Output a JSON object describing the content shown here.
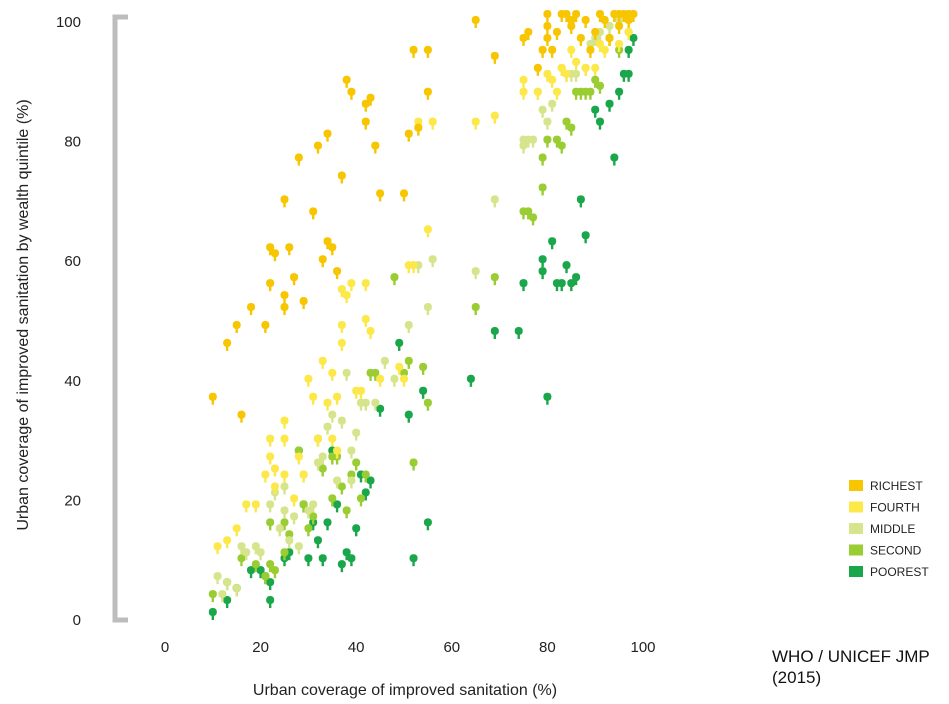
{
  "source_note": "WHO / UNICEF JMP (2015)",
  "chart_data": {
    "type": "scatter",
    "xlabel": "Urban coverage of improved sanitation (%)",
    "ylabel": "Urban coverage of improved sanitation by wealth quintile (%)",
    "xlim": [
      0,
      100
    ],
    "ylim": [
      0,
      100
    ],
    "x_ticks": [
      0,
      20,
      40,
      60,
      80,
      100
    ],
    "y_ticks": [
      0,
      20,
      40,
      60,
      80,
      100
    ],
    "legend_position": "right",
    "series": [
      {
        "name": "RICHEST",
        "color": "#f7c600",
        "points": [
          [
            10,
            37
          ],
          [
            13,
            46
          ],
          [
            15,
            49
          ],
          [
            16,
            34
          ],
          [
            18,
            52
          ],
          [
            21,
            49
          ],
          [
            22,
            62
          ],
          [
            22,
            56
          ],
          [
            23,
            61
          ],
          [
            25,
            70
          ],
          [
            25,
            54
          ],
          [
            25,
            52
          ],
          [
            26,
            62
          ],
          [
            27,
            57
          ],
          [
            28,
            77
          ],
          [
            29,
            53
          ],
          [
            31,
            68
          ],
          [
            32,
            79
          ],
          [
            33,
            60
          ],
          [
            34,
            81
          ],
          [
            34,
            63
          ],
          [
            35,
            62
          ],
          [
            36,
            58
          ],
          [
            37,
            74
          ],
          [
            38,
            90
          ],
          [
            39,
            88
          ],
          [
            42,
            86
          ],
          [
            42,
            83
          ],
          [
            43,
            87
          ],
          [
            44,
            79
          ],
          [
            45,
            71
          ],
          [
            50,
            71
          ],
          [
            51,
            81
          ],
          [
            52,
            95
          ],
          [
            53,
            82
          ],
          [
            55,
            95
          ],
          [
            55,
            88
          ],
          [
            65,
            100
          ],
          [
            69,
            94
          ],
          [
            75,
            97
          ],
          [
            76,
            98
          ],
          [
            78,
            92
          ],
          [
            79,
            95
          ],
          [
            80,
            97
          ],
          [
            80,
            99
          ],
          [
            80,
            101
          ],
          [
            81,
            95
          ],
          [
            82,
            98
          ],
          [
            83,
            101
          ],
          [
            84,
            101
          ],
          [
            85,
            100
          ],
          [
            85,
            99
          ],
          [
            86,
            101
          ],
          [
            87,
            97
          ],
          [
            88,
            100
          ],
          [
            89,
            95
          ],
          [
            90,
            98
          ],
          [
            91,
            101
          ],
          [
            92,
            100
          ],
          [
            93,
            97
          ],
          [
            94,
            101
          ],
          [
            95,
            99
          ],
          [
            95,
            101
          ],
          [
            96,
            101
          ],
          [
            97,
            100
          ],
          [
            97,
            101
          ],
          [
            98,
            101
          ]
        ]
      },
      {
        "name": "FOURTH",
        "color": "#fde84a",
        "points": [
          [
            11,
            12
          ],
          [
            13,
            13
          ],
          [
            15,
            15
          ],
          [
            17,
            19
          ],
          [
            19,
            19
          ],
          [
            21,
            24
          ],
          [
            22,
            30
          ],
          [
            22,
            27
          ],
          [
            23,
            25
          ],
          [
            23,
            22
          ],
          [
            25,
            33
          ],
          [
            25,
            30
          ],
          [
            25,
            24
          ],
          [
            27,
            20
          ],
          [
            28,
            27
          ],
          [
            29,
            24
          ],
          [
            30,
            40
          ],
          [
            31,
            37
          ],
          [
            32,
            30
          ],
          [
            33,
            43
          ],
          [
            34,
            36
          ],
          [
            35,
            30
          ],
          [
            35,
            41
          ],
          [
            36,
            37
          ],
          [
            36,
            28
          ],
          [
            37,
            46
          ],
          [
            37,
            49
          ],
          [
            37,
            55
          ],
          [
            38,
            54
          ],
          [
            39,
            56
          ],
          [
            40,
            38
          ],
          [
            41,
            38
          ],
          [
            42,
            56
          ],
          [
            42,
            50
          ],
          [
            43,
            48
          ],
          [
            45,
            40
          ],
          [
            49,
            42
          ],
          [
            50,
            40
          ],
          [
            51,
            59
          ],
          [
            52,
            59
          ],
          [
            53,
            83
          ],
          [
            55,
            65
          ],
          [
            56,
            83
          ],
          [
            65,
            83
          ],
          [
            69,
            84
          ],
          [
            75,
            88
          ],
          [
            75,
            90
          ],
          [
            78,
            88
          ],
          [
            80,
            91
          ],
          [
            81,
            90
          ],
          [
            82,
            88
          ],
          [
            83,
            92
          ],
          [
            84,
            91
          ],
          [
            85,
            95
          ],
          [
            86,
            93
          ],
          [
            88,
            92
          ],
          [
            90,
            92
          ],
          [
            91,
            96
          ],
          [
            92,
            95
          ],
          [
            95,
            96
          ],
          [
            97,
            98
          ]
        ]
      },
      {
        "name": "MIDDLE",
        "color": "#d6e58c",
        "points": [
          [
            11,
            7
          ],
          [
            12,
            4
          ],
          [
            13,
            6
          ],
          [
            15,
            5
          ],
          [
            16,
            12
          ],
          [
            17,
            11
          ],
          [
            19,
            12
          ],
          [
            20,
            11
          ],
          [
            22,
            19
          ],
          [
            23,
            21
          ],
          [
            24,
            15
          ],
          [
            25,
            22
          ],
          [
            25,
            18
          ],
          [
            26,
            13
          ],
          [
            27,
            17
          ],
          [
            28,
            12
          ],
          [
            29,
            24
          ],
          [
            30,
            18
          ],
          [
            31,
            19
          ],
          [
            32,
            26
          ],
          [
            33,
            27
          ],
          [
            34,
            32
          ],
          [
            35,
            34
          ],
          [
            36,
            23
          ],
          [
            37,
            33
          ],
          [
            38,
            41
          ],
          [
            39,
            23
          ],
          [
            39,
            28
          ],
          [
            40,
            31
          ],
          [
            41,
            36
          ],
          [
            42,
            36
          ],
          [
            44,
            36
          ],
          [
            46,
            43
          ],
          [
            48,
            40
          ],
          [
            51,
            49
          ],
          [
            53,
            59
          ],
          [
            55,
            52
          ],
          [
            56,
            60
          ],
          [
            65,
            58
          ],
          [
            69,
            70
          ],
          [
            75,
            79
          ],
          [
            75,
            80
          ],
          [
            76,
            80
          ],
          [
            77,
            80
          ],
          [
            78,
            88
          ],
          [
            79,
            85
          ],
          [
            80,
            83
          ],
          [
            81,
            86
          ],
          [
            83,
            92
          ],
          [
            84,
            91
          ],
          [
            85,
            91
          ],
          [
            86,
            91
          ],
          [
            88,
            92
          ],
          [
            89,
            96
          ],
          [
            90,
            97
          ],
          [
            91,
            98
          ],
          [
            93,
            99
          ],
          [
            95,
            100
          ]
        ]
      },
      {
        "name": "SECOND",
        "color": "#9acd32",
        "points": [
          [
            10,
            4
          ],
          [
            13,
            6
          ],
          [
            15,
            5
          ],
          [
            16,
            10
          ],
          [
            19,
            9
          ],
          [
            21,
            7
          ],
          [
            22,
            16
          ],
          [
            22,
            9
          ],
          [
            23,
            8
          ],
          [
            25,
            16
          ],
          [
            25,
            11
          ],
          [
            26,
            14
          ],
          [
            28,
            28
          ],
          [
            29,
            19
          ],
          [
            30,
            15
          ],
          [
            31,
            17
          ],
          [
            32,
            30
          ],
          [
            33,
            25
          ],
          [
            35,
            27
          ],
          [
            35,
            20
          ],
          [
            36,
            27
          ],
          [
            37,
            22
          ],
          [
            38,
            18
          ],
          [
            39,
            24
          ],
          [
            40,
            26
          ],
          [
            41,
            20
          ],
          [
            42,
            24
          ],
          [
            43,
            41
          ],
          [
            44,
            41
          ],
          [
            48,
            57
          ],
          [
            50,
            41
          ],
          [
            51,
            43
          ],
          [
            52,
            26
          ],
          [
            54,
            42
          ],
          [
            55,
            36
          ],
          [
            65,
            52
          ],
          [
            69,
            57
          ],
          [
            75,
            68
          ],
          [
            76,
            68
          ],
          [
            77,
            67
          ],
          [
            79,
            72
          ],
          [
            79,
            77
          ],
          [
            80,
            80
          ],
          [
            82,
            80
          ],
          [
            83,
            79
          ],
          [
            84,
            83
          ],
          [
            85,
            82
          ],
          [
            86,
            88
          ],
          [
            87,
            88
          ],
          [
            88,
            88
          ],
          [
            89,
            88
          ],
          [
            90,
            90
          ],
          [
            91,
            89
          ],
          [
            93,
            97
          ],
          [
            95,
            95
          ],
          [
            97,
            98
          ]
        ]
      },
      {
        "name": "POOREST",
        "color": "#1aa64a",
        "points": [
          [
            10,
            1
          ],
          [
            13,
            3
          ],
          [
            15,
            5
          ],
          [
            18,
            8
          ],
          [
            20,
            8
          ],
          [
            21,
            7
          ],
          [
            22,
            6
          ],
          [
            22,
            3
          ],
          [
            25,
            10
          ],
          [
            26,
            11
          ],
          [
            28,
            28
          ],
          [
            29,
            19
          ],
          [
            30,
            10
          ],
          [
            31,
            16
          ],
          [
            32,
            13
          ],
          [
            33,
            10
          ],
          [
            34,
            16
          ],
          [
            35,
            28
          ],
          [
            36,
            19
          ],
          [
            37,
            9
          ],
          [
            38,
            11
          ],
          [
            39,
            10
          ],
          [
            40,
            15
          ],
          [
            41,
            24
          ],
          [
            42,
            21
          ],
          [
            43,
            23
          ],
          [
            45,
            35
          ],
          [
            49,
            46
          ],
          [
            51,
            34
          ],
          [
            52,
            10
          ],
          [
            54,
            38
          ],
          [
            55,
            16
          ],
          [
            64,
            40
          ],
          [
            69,
            48
          ],
          [
            74,
            48
          ],
          [
            75,
            56
          ],
          [
            79,
            58
          ],
          [
            79,
            60
          ],
          [
            80,
            37
          ],
          [
            81,
            63
          ],
          [
            82,
            56
          ],
          [
            83,
            56
          ],
          [
            84,
            59
          ],
          [
            85,
            56
          ],
          [
            86,
            57
          ],
          [
            87,
            70
          ],
          [
            88,
            64
          ],
          [
            90,
            85
          ],
          [
            91,
            83
          ],
          [
            93,
            86
          ],
          [
            94,
            77
          ],
          [
            95,
            88
          ],
          [
            96,
            91
          ],
          [
            97,
            91
          ],
          [
            97,
            95
          ],
          [
            98,
            97
          ]
        ]
      }
    ]
  }
}
